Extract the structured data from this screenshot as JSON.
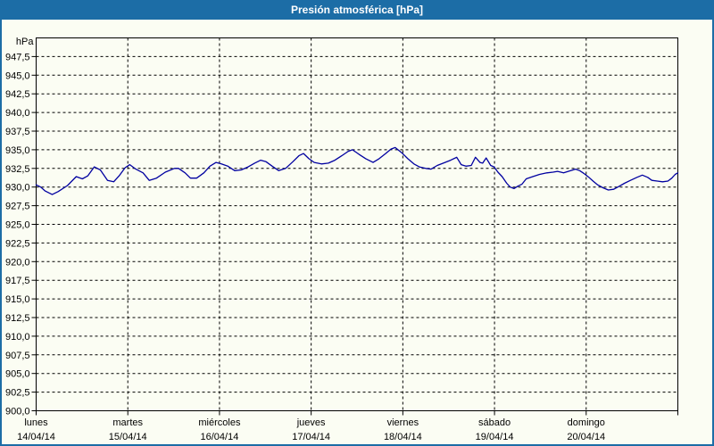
{
  "window": {
    "title": "Presión atmosférica [hPa]",
    "titlebar_color": "#1c6da6",
    "border_color": "#1c6da6",
    "background_color": "#fbfdf3"
  },
  "chart_data": {
    "type": "line",
    "title": "Presión atmosférica [hPa]",
    "grid": {
      "horizontal": true,
      "vertical": true,
      "style": "dashed",
      "color": "#000000"
    },
    "y_axis": {
      "unit_label": "hPa",
      "min": 900,
      "max": 950,
      "tick_step": 2.5,
      "tick_labels": [
        "900,0",
        "902,5",
        "905,0",
        "907,5",
        "910,0",
        "912,5",
        "915,0",
        "917,5",
        "920,0",
        "922,5",
        "925,0",
        "927,5",
        "930,0",
        "932,5",
        "935,0",
        "937,5",
        "940,0",
        "942,5",
        "945,0",
        "947,5"
      ]
    },
    "x_axis": {
      "range_days": 7,
      "days": [
        {
          "name": "lunes",
          "date": "14/04/14"
        },
        {
          "name": "martes",
          "date": "15/04/14"
        },
        {
          "name": "miércoles",
          "date": "16/04/14"
        },
        {
          "name": "jueves",
          "date": "17/04/14"
        },
        {
          "name": "viernes",
          "date": "18/04/14"
        },
        {
          "name": "sábado",
          "date": "19/04/14"
        },
        {
          "name": "domingo",
          "date": "20/04/14"
        }
      ]
    },
    "series": [
      {
        "name": "Presión atmosférica",
        "unit": "hPa",
        "color": "#0000a0",
        "points_format": "[hours_since_monday_00, hPa]",
        "points": [
          [
            0,
            930.3
          ],
          [
            1.2,
            930.0
          ],
          [
            2.3,
            929.5
          ],
          [
            4.2,
            929.0
          ],
          [
            5.8,
            929.4
          ],
          [
            8.2,
            930.2
          ],
          [
            10.5,
            931.4
          ],
          [
            12.1,
            931.1
          ],
          [
            13.5,
            931.5
          ],
          [
            15.2,
            932.7
          ],
          [
            16.8,
            932.3
          ],
          [
            18.7,
            930.9
          ],
          [
            20.3,
            930.7
          ],
          [
            21.7,
            931.5
          ],
          [
            23.3,
            932.6
          ],
          [
            24.5,
            933.0
          ],
          [
            26.1,
            932.4
          ],
          [
            28,
            931.9
          ],
          [
            29.6,
            930.9
          ],
          [
            31.5,
            931.2
          ],
          [
            33.8,
            932.0
          ],
          [
            36.2,
            932.5
          ],
          [
            37.3,
            932.5
          ],
          [
            39,
            931.9
          ],
          [
            40.4,
            931.2
          ],
          [
            42,
            931.2
          ],
          [
            43.9,
            931.9
          ],
          [
            45.5,
            932.8
          ],
          [
            47.1,
            933.3
          ],
          [
            48.5,
            933.1
          ],
          [
            50.2,
            932.8
          ],
          [
            52,
            932.2
          ],
          [
            53.7,
            932.3
          ],
          [
            55.5,
            932.7
          ],
          [
            57.2,
            933.2
          ],
          [
            58.8,
            933.6
          ],
          [
            60.2,
            933.4
          ],
          [
            61.8,
            932.8
          ],
          [
            63.5,
            932.2
          ],
          [
            65.3,
            932.5
          ],
          [
            67.2,
            933.4
          ],
          [
            68.8,
            934.2
          ],
          [
            70,
            934.5
          ],
          [
            71.4,
            933.8
          ],
          [
            72.8,
            933.3
          ],
          [
            74.7,
            933.1
          ],
          [
            76.5,
            933.2
          ],
          [
            78.2,
            933.6
          ],
          [
            80,
            934.2
          ],
          [
            81.7,
            934.8
          ],
          [
            82.8,
            935.0
          ],
          [
            84.5,
            934.4
          ],
          [
            86.3,
            933.8
          ],
          [
            88.2,
            933.3
          ],
          [
            89.8,
            933.8
          ],
          [
            91.5,
            934.5
          ],
          [
            92.9,
            935.1
          ],
          [
            94,
            935.3
          ],
          [
            95.7,
            934.6
          ],
          [
            97.3,
            933.8
          ],
          [
            98.9,
            933.1
          ],
          [
            100.3,
            932.7
          ],
          [
            102,
            932.5
          ],
          [
            103.4,
            932.4
          ],
          [
            105,
            932.9
          ],
          [
            106.6,
            933.2
          ],
          [
            108.5,
            933.6
          ],
          [
            110.1,
            934.0
          ],
          [
            111.3,
            933.0
          ],
          [
            112.5,
            932.8
          ],
          [
            113.9,
            932.9
          ],
          [
            115,
            934.0
          ],
          [
            116.2,
            933.3
          ],
          [
            116.9,
            933.2
          ],
          [
            117.8,
            933.9
          ],
          [
            119,
            932.9
          ],
          [
            119.9,
            932.7
          ],
          [
            120.9,
            932.0
          ],
          [
            122,
            931.4
          ],
          [
            123.2,
            930.5
          ],
          [
            124.1,
            930.0
          ],
          [
            125.1,
            929.8
          ],
          [
            126,
            930.1
          ],
          [
            127.2,
            930.4
          ],
          [
            128.3,
            931.1
          ],
          [
            130,
            931.4
          ],
          [
            131.8,
            931.7
          ],
          [
            133.7,
            931.9
          ],
          [
            135.3,
            932.0
          ],
          [
            136.5,
            932.1
          ],
          [
            138.1,
            931.9
          ],
          [
            139.3,
            932.1
          ],
          [
            141.2,
            932.4
          ],
          [
            142.3,
            932.2
          ],
          [
            143.5,
            931.8
          ],
          [
            144.7,
            931.3
          ],
          [
            145.8,
            930.8
          ],
          [
            147,
            930.3
          ],
          [
            148.4,
            929.9
          ],
          [
            149.8,
            929.6
          ],
          [
            151.2,
            929.7
          ],
          [
            152.6,
            930.1
          ],
          [
            154,
            930.5
          ],
          [
            155.6,
            930.9
          ],
          [
            157.3,
            931.3
          ],
          [
            158.7,
            931.6
          ],
          [
            160.1,
            931.3
          ],
          [
            161.2,
            930.9
          ],
          [
            162.6,
            930.8
          ],
          [
            164,
            930.7
          ],
          [
            165.4,
            930.8
          ],
          [
            166.4,
            931.2
          ],
          [
            167.3,
            931.7
          ],
          [
            168,
            931.9
          ]
        ]
      }
    ]
  }
}
